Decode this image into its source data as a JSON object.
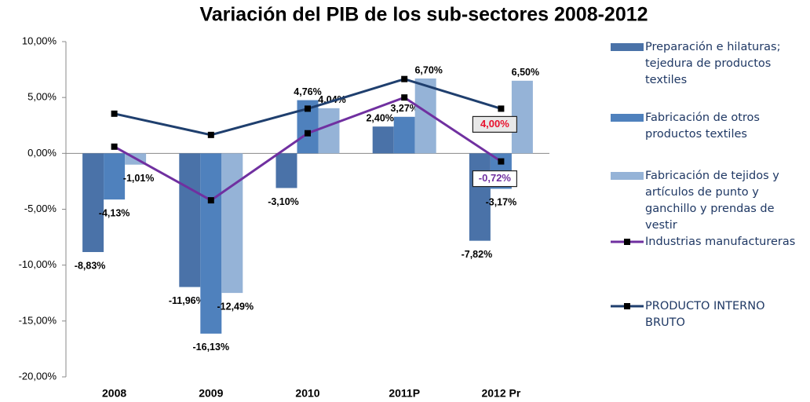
{
  "chart_data": {
    "type": "bar",
    "title": "Variación del PIB de los sub-sectores 2008-2012",
    "categories": [
      "2008",
      "2009",
      "2010",
      "2011P",
      "2012 Pr"
    ],
    "ylim": [
      -20,
      10
    ],
    "yticks": [
      {
        "value": -20,
        "label": "-20,00%"
      },
      {
        "value": -15,
        "label": "-15,00%"
      },
      {
        "value": -10,
        "label": "-10,00%"
      },
      {
        "value": -5,
        "label": "-5,00%"
      },
      {
        "value": 0,
        "label": "0,00%"
      },
      {
        "value": 5,
        "label": "5,00%"
      },
      {
        "value": 10,
        "label": "10,00%"
      }
    ],
    "legend": "right",
    "series": [
      {
        "name": "Preparación e hilaturas; tejedura de productos textiles",
        "type": "bar",
        "color": "#4a72a8",
        "values": [
          -8.83,
          -11.96,
          -3.1,
          2.4,
          -7.82
        ],
        "value_labels": [
          "-8,83%",
          "-11,96%",
          "-3,10%",
          "2,40%",
          "-7,82%"
        ]
      },
      {
        "name": "Fabricación de otros productos textiles",
        "type": "bar",
        "color": "#4f81bd",
        "values": [
          -4.13,
          -16.13,
          4.76,
          3.27,
          -3.17
        ],
        "value_labels": [
          "-4,13%",
          "-16,13%",
          "4,76%",
          "3,27%",
          "-3,17%"
        ]
      },
      {
        "name": "Fabricación de tejidos y artículos de punto  y ganchillo y prendas de vestir",
        "type": "bar",
        "color": "#95b3d7",
        "values": [
          -1.01,
          -12.49,
          4.04,
          6.7,
          6.5
        ],
        "value_labels": [
          "-1,01%",
          "-12,49%",
          "4,04%",
          "6,70%",
          "6,50%"
        ]
      },
      {
        "name": "Industrias manufactureras",
        "type": "line",
        "color": "#7030a0",
        "values": [
          0.6,
          -4.2,
          1.8,
          5.0,
          -0.72
        ],
        "value_labels": [
          null,
          null,
          null,
          null,
          "-0,72%"
        ]
      },
      {
        "name": "PRODUCTO INTERNO BRUTO",
        "type": "line",
        "color": "#1f3f6e",
        "values": [
          3.55,
          1.65,
          4.0,
          6.65,
          4.0
        ],
        "value_labels": [
          null,
          null,
          null,
          null,
          "4,00%"
        ]
      }
    ]
  }
}
